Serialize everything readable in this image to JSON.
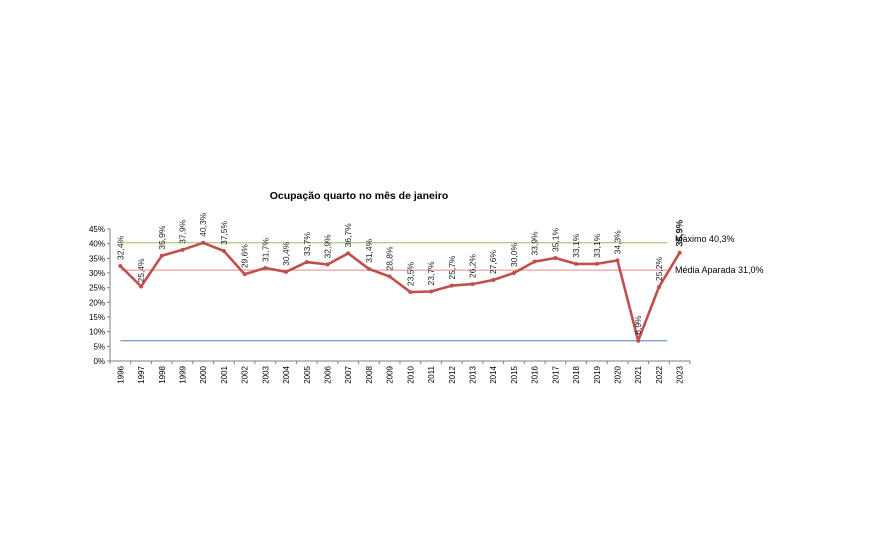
{
  "chart_data": {
    "type": "line",
    "title": "Ocupação quarto no mês de janeiro",
    "categories": [
      "1996",
      "1997",
      "1998",
      "1999",
      "2000",
      "2001",
      "2002",
      "2003",
      "2004",
      "2005",
      "2006",
      "2007",
      "2008",
      "2009",
      "2010",
      "2011",
      "2012",
      "2013",
      "2014",
      "2015",
      "2016",
      "2017",
      "2018",
      "2019",
      "2020",
      "2021",
      "2022",
      "2023"
    ],
    "series": [
      {
        "values": [
          32.4,
          25.4,
          35.9,
          37.9,
          40.3,
          37.5,
          29.6,
          31.7,
          30.4,
          33.7,
          32.9,
          36.7,
          31.4,
          28.8,
          23.5,
          23.7,
          25.7,
          26.2,
          27.6,
          30.0,
          33.9,
          35.1,
          33.1,
          33.1,
          34.3,
          6.9,
          25.2,
          36.9
        ],
        "labels": [
          "32,4%",
          "25,4%",
          "35,9%",
          "37,9%",
          "40,3%",
          "37,5%",
          "29,6%",
          "31,7%",
          "30,4%",
          "33,7%",
          "32,9%",
          "36,7%",
          "31,4%",
          "28,8%",
          "23,5%",
          "23,7%",
          "25,7%",
          "26,2%",
          "27,6%",
          "30,0%",
          "33,9%",
          "35,1%",
          "33,1%",
          "33,1%",
          "34,3%",
          "6,9%",
          "25,2%",
          "36,9%"
        ],
        "color": "#c0504d"
      }
    ],
    "y_ticks": [
      "0%",
      "5%",
      "10%",
      "15%",
      "20%",
      "25%",
      "30%",
      "35%",
      "40%",
      "45%"
    ],
    "ylim": [
      0,
      45
    ],
    "reference_lines": [
      {
        "label": "Máximo 40,3%",
        "value": 40.3,
        "color": "#9bbb59"
      },
      {
        "label": "Média Aparada 31,0%",
        "value": 31.0,
        "color": "#e58a8a"
      },
      {
        "label": "",
        "value": 6.9,
        "color": "#4f81bd"
      }
    ],
    "xlabel": "",
    "ylabel": "",
    "grid": false,
    "legend": "none"
  }
}
